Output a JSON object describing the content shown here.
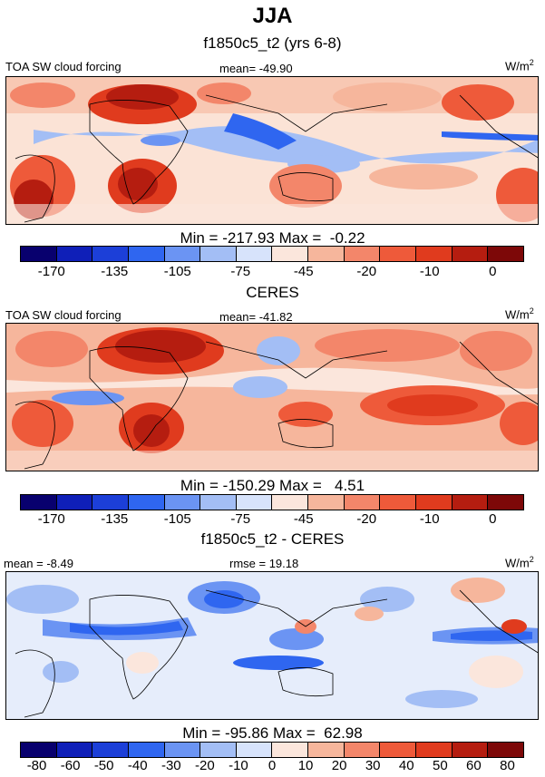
{
  "season": "JJA",
  "palette": [
    "#08006e",
    "#0f1fb8",
    "#1c3fd8",
    "#2f66f0",
    "#6b94f3",
    "#a3bef5",
    "#d7e3fb",
    "#fbe6dc",
    "#f6b69c",
    "#f3866a",
    "#ee5a3a",
    "#e03b1e",
    "#b51d10",
    "#7d0808"
  ],
  "diff_palette": [
    "#08006e",
    "#0f1fb8",
    "#1c3fd8",
    "#2f66f0",
    "#6b94f3",
    "#a3bef5",
    "#d7e3fb",
    "#fbe6dc",
    "#f6b69c",
    "#f3866a",
    "#ee5a3a",
    "#e03b1e",
    "#b51d10",
    "#7d0808"
  ],
  "panels": [
    {
      "title": "f1850c5_t2 (yrs 6-8)",
      "left_label": "TOA SW cloud forcing",
      "center_label": "mean= -49.90",
      "units": "W/m",
      "units_sup": "2",
      "min_max": "Min = -217.93 Max =  -0.22",
      "colorbar_labels": [
        "-170",
        "-135",
        "-105",
        "-75",
        "-45",
        "-20",
        "-10",
        "0"
      ]
    },
    {
      "title": "CERES",
      "left_label": "TOA SW cloud forcing",
      "center_label": "mean= -41.82",
      "units": "W/m",
      "units_sup": "2",
      "min_max": "Min = -150.29 Max =   4.51",
      "colorbar_labels": [
        "-170",
        "-135",
        "-105",
        "-75",
        "-45",
        "-20",
        "-10",
        "0"
      ]
    },
    {
      "title": "f1850c5_t2 - CERES",
      "left_label": "mean =  -8.49",
      "center_label": "rmse =  19.18",
      "units": "W/m",
      "units_sup": "2",
      "min_max": "Min = -95.86 Max =  62.98",
      "colorbar_labels": [
        "-80",
        "-60",
        "-50",
        "-40",
        "-30",
        "-20",
        "-10",
        "0",
        "10",
        "20",
        "30",
        "40",
        "50",
        "60",
        "80"
      ]
    }
  ]
}
